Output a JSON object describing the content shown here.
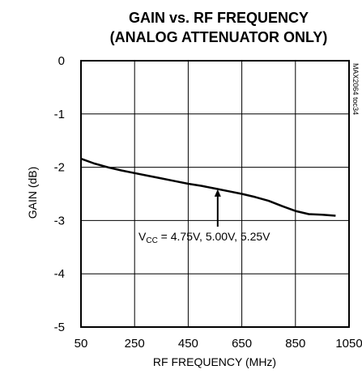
{
  "chart_data": {
    "type": "line",
    "title": "GAIN vs. RF FREQUENCY",
    "subtitle": "(ANALOG ATTENUATOR ONLY)",
    "xlabel": "RF FREQUENCY (MHz)",
    "ylabel": "GAIN (dB)",
    "xlim": [
      50,
      1050
    ],
    "ylim": [
      -5,
      0
    ],
    "xticks": [
      "50",
      "250",
      "450",
      "650",
      "850",
      "1050"
    ],
    "yticks": [
      "0",
      "-1",
      "-2",
      "-3",
      "-4",
      "-5"
    ],
    "grid": true,
    "figure_ref": "MAX2064 toc34",
    "annotation": {
      "text_main": "V",
      "text_sub": "CC",
      "text_rest": " = 4.75V, 5.00V, 5.25V",
      "arrow_to": [
        560,
        -2.4
      ]
    },
    "series": [
      {
        "x": [
          50,
          100,
          150,
          200,
          250,
          300,
          350,
          400,
          450,
          500,
          550,
          600,
          650,
          700,
          750,
          800,
          850,
          900,
          950,
          1000
        ],
        "y": [
          -1.84,
          -1.93,
          -2.0,
          -2.06,
          -2.11,
          -2.16,
          -2.21,
          -2.26,
          -2.31,
          -2.35,
          -2.4,
          -2.45,
          -2.5,
          -2.56,
          -2.63,
          -2.73,
          -2.82,
          -2.88,
          -2.89,
          -2.91
        ]
      }
    ]
  }
}
